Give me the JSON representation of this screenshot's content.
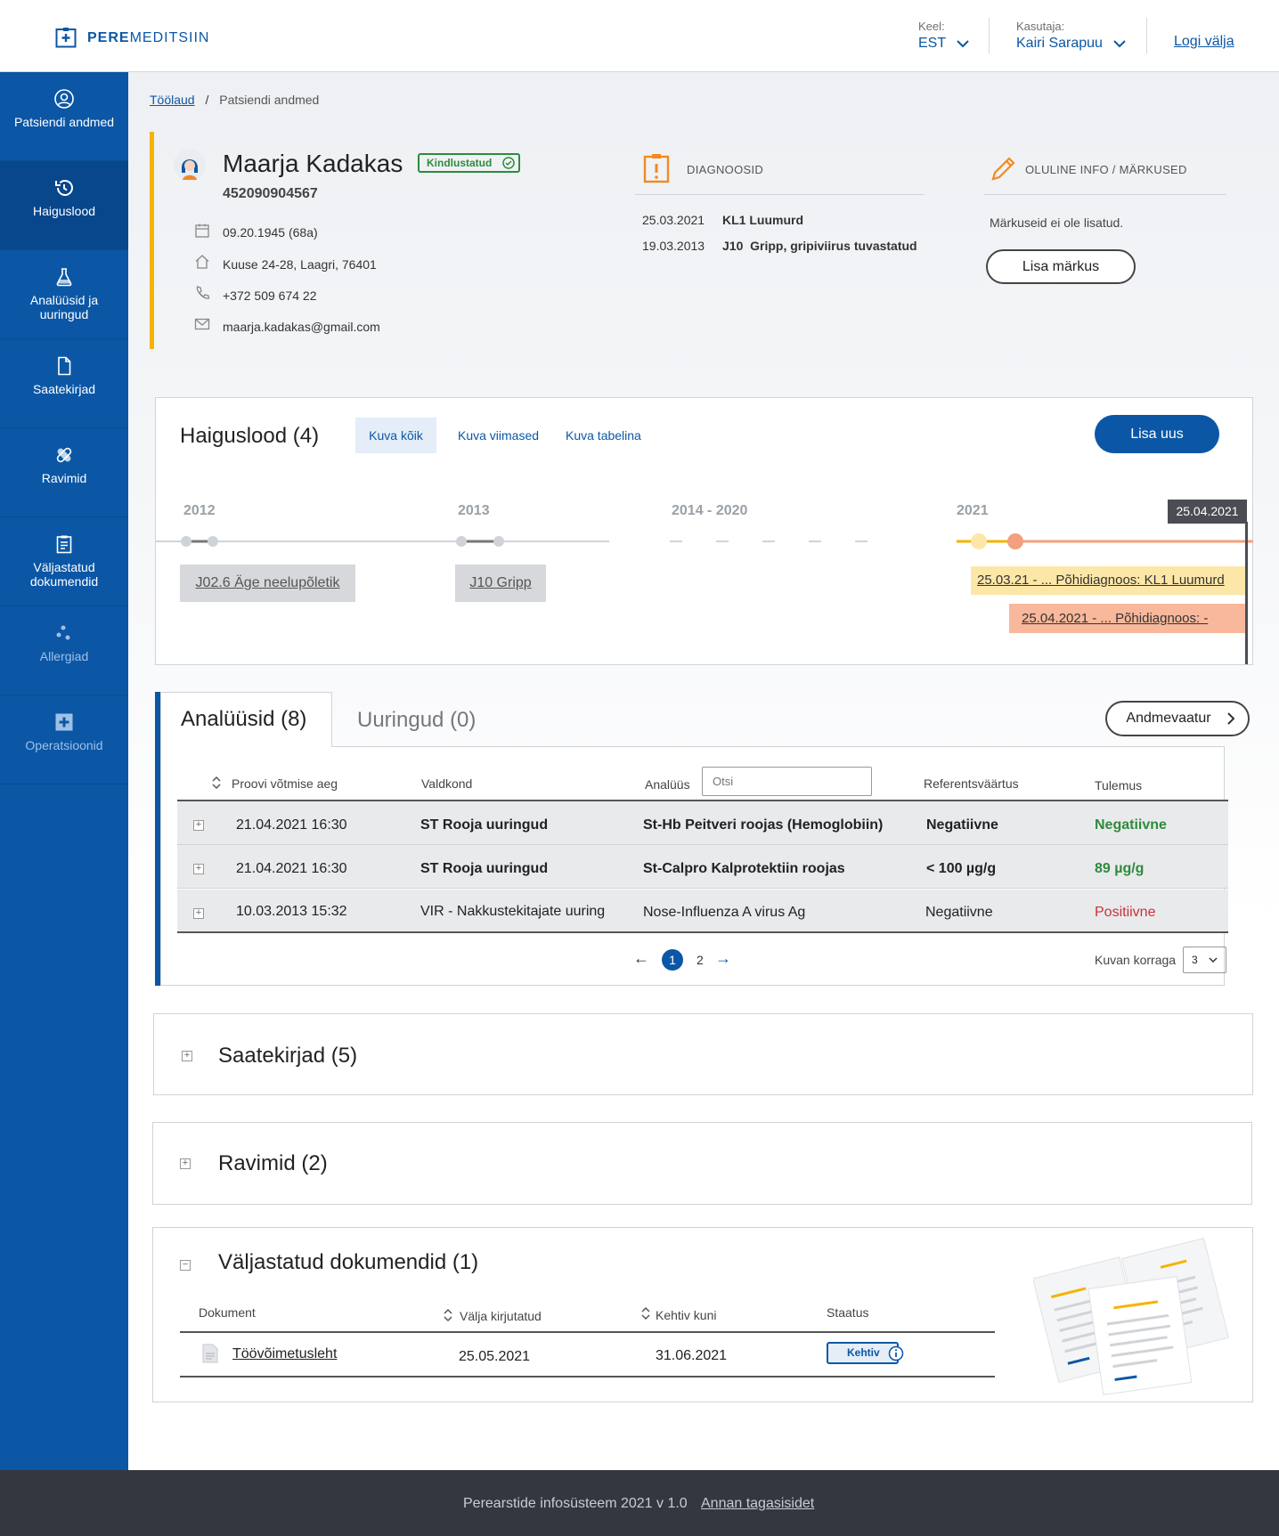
{
  "header": {
    "logo": "PEREMEDITSIIN",
    "language_label": "Keel:",
    "language_value": "EST",
    "user_label": "Kasutaja:",
    "user_value": "Kairi Sarapuu",
    "logout": "Logi välja"
  },
  "sidebar": {
    "items": [
      {
        "label": "Patsiendi andmed",
        "icon": "user-circle-icon"
      },
      {
        "label": "Haiguslood",
        "icon": "history-icon"
      },
      {
        "label": "Analüüsid ja uuringud",
        "icon": "flask-icon"
      },
      {
        "label": "Saatekirjad",
        "icon": "document-icon"
      },
      {
        "label": "Ravimid",
        "icon": "pill-icon"
      },
      {
        "label": "Väljastatud dokumendid",
        "icon": "clipboard-icon"
      },
      {
        "label": "Allergiad",
        "icon": "dots-icon"
      },
      {
        "label": "Operatsioonid",
        "icon": "medical-cross-icon"
      }
    ]
  },
  "breadcrumb": {
    "home": "Töölaud",
    "sep": "/",
    "current": "Patsiendi andmed"
  },
  "patient": {
    "name": "Maarja Kadakas",
    "badge": "Kindlustatud",
    "id_code": "452090904567",
    "birth": "09.20.1945 (68a)",
    "address": "Kuuse 24-28, Laagri, 76401",
    "phone": "+372 509 674 22",
    "email": "maarja.kadakas@gmail.com"
  },
  "diagnoses": {
    "title": "DIAGNOOSID",
    "items": [
      {
        "date": "25.03.2021",
        "code": "KL1 Luumurd"
      },
      {
        "date": "19.03.2013",
        "code": "J10  Gripp, gripiviirus tuvastatud"
      }
    ]
  },
  "notes": {
    "title": "OLULINE INFO / MÄRKUSED",
    "empty": "Märkuseid ei ole lisatud.",
    "add_button": "Lisa märkus"
  },
  "history": {
    "title": "Haiguslood (4)",
    "tabs": [
      "Kuva kõik",
      "Kuva viimased",
      "Kuva tabelina"
    ],
    "add_button": "Lisa uus",
    "years": [
      "2012",
      "2013",
      "2014 - 2020",
      "2021"
    ],
    "today_marker": "25.04.2021",
    "entries": [
      {
        "label": "J02.6 Äge neelupõletik",
        "color": "#d6d8db"
      },
      {
        "label": "J10 Gripp",
        "color": "#d6d8db"
      },
      {
        "label": "25.03.21 - ... Põhidiagnoos: KL1 Luumurd",
        "color": "#fde7a8"
      },
      {
        "label": "25.04.2021 - ... Põhidiagnoos: -",
        "color": "#f9b89b"
      }
    ]
  },
  "analyses": {
    "tab_active": "Analüüsid (8)",
    "tab_inactive": "Uuringud (0)",
    "viewer_button": "Andmevaatur",
    "columns": {
      "time": "Proovi võtmise aeg",
      "area": "Valdkond",
      "analysis": "Analüüs",
      "search_placeholder": "Otsi",
      "reference": "Referentsväärtus",
      "result": "Tulemus"
    },
    "rows": [
      {
        "time": "21.04.2021 16:30",
        "area": "ST Rooja uuringud",
        "analysis": "St-Hb Peitveri roojas (Hemoglobiin)",
        "reference": "Negatiivne",
        "result": "Negatiivne",
        "result_color": "#2e8b3c"
      },
      {
        "time": "21.04.2021 16:30",
        "area": "ST Rooja uuringud",
        "analysis": "St-Calpro Kalprotektiin roojas",
        "reference": "< 100 µg/g",
        "result": "89 µg/g",
        "result_color": "#2e8b3c"
      },
      {
        "time": "10.03.2013 15:32",
        "area": "VIR - Nakkustekitajate uuring",
        "analysis": "Nose-Influenza A virus Ag",
        "reference": "Negatiivne",
        "result": "Positiivne",
        "result_color": "#c8323a"
      }
    ],
    "pagination": {
      "prev": "←",
      "current": "1",
      "next_page": "2",
      "next": "→"
    },
    "per_page_label": "Kuvan korraga",
    "per_page_value": "3"
  },
  "collapsed_sections": [
    {
      "title": "Saatekirjad (5)"
    },
    {
      "title": "Ravimid (2)"
    }
  ],
  "documents": {
    "title": "Väljastatud dokumendid (1)",
    "columns": {
      "doc": "Dokument",
      "issued": "Välja kirjutatud",
      "valid": "Kehtiv kuni",
      "status": "Staatus"
    },
    "rows": [
      {
        "doc": "Töövõimetusleht",
        "issued": "25.05.2021",
        "valid": "31.06.2021",
        "status": "Kehtiv"
      }
    ]
  },
  "footer": {
    "text": "Perearstide infosüsteem 2021 v 1.0",
    "feedback": "Annan tagasisidet"
  },
  "colors": {
    "primary": "#0b57a6",
    "accent_yellow": "#f4b400",
    "success": "#2e8b3c",
    "danger": "#c8323a"
  }
}
